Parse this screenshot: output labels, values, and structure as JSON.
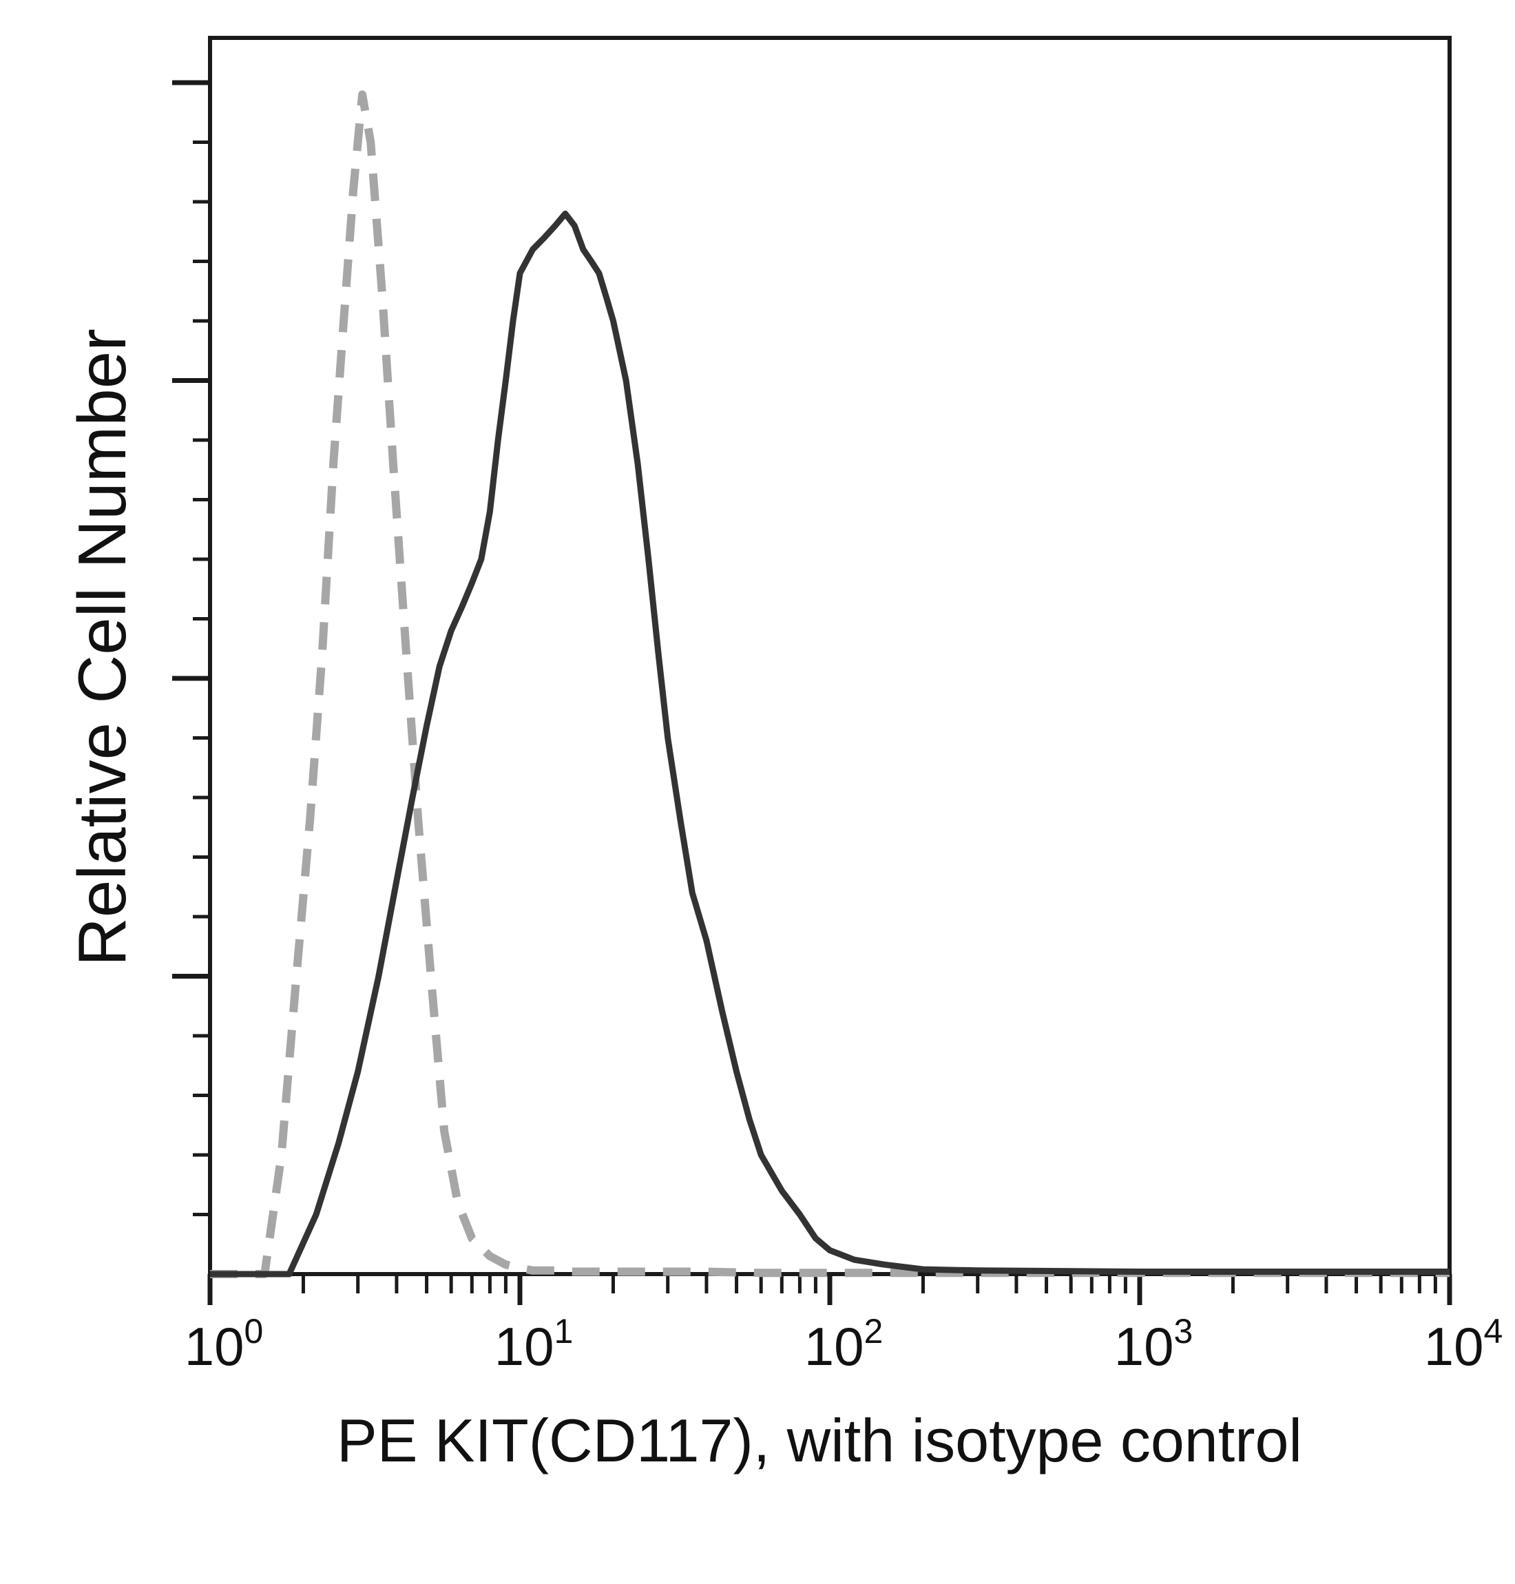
{
  "chart_data": {
    "type": "line",
    "title": "",
    "xlabel": "PE KIT(CD117), with isotype control",
    "ylabel": "Relative Cell Number",
    "x_scale": "log",
    "xlim": [
      1,
      10000
    ],
    "ylim": [
      0,
      100
    ],
    "x_ticks": [
      {
        "base": "10",
        "exp": "0"
      },
      {
        "base": "10",
        "exp": "1"
      },
      {
        "base": "10",
        "exp": "2"
      },
      {
        "base": "10",
        "exp": "3"
      },
      {
        "base": "10",
        "exp": "4"
      }
    ],
    "y_tick_labels": "none",
    "grid": false,
    "legend": "none",
    "series": [
      {
        "style": "dashed",
        "color": "#a6a6a6",
        "x": [
          1,
          1.5,
          1.7,
          1.9,
          2.1,
          2.3,
          2.5,
          2.7,
          2.9,
          3.1,
          3.3,
          3.6,
          3.9,
          4.3,
          4.7,
          5.2,
          5.7,
          6.3,
          7,
          8,
          9,
          10,
          11,
          13,
          15,
          17,
          20,
          25,
          30,
          40,
          60,
          100,
          1000,
          10000
        ],
        "y": [
          0,
          0,
          10,
          25,
          38,
          52,
          68,
          80,
          91,
          99,
          95,
          82,
          68,
          52,
          38,
          24,
          12,
          6,
          3,
          1.5,
          0.8,
          0.5,
          0.3,
          0.3,
          0.2,
          0.2,
          0.2,
          0.2,
          0.2,
          0.2,
          0.1,
          0.1,
          0.1,
          0.1
        ]
      },
      {
        "style": "solid",
        "color": "#333333",
        "x": [
          1,
          1.8,
          2.2,
          2.6,
          3,
          3.5,
          4,
          4.5,
          5,
          5.5,
          6,
          6.5,
          7,
          7.5,
          8,
          8.5,
          9,
          9.5,
          10,
          11,
          12,
          13,
          14,
          15,
          16,
          17,
          18,
          19,
          20,
          22,
          24,
          26,
          28,
          30,
          33,
          36,
          40,
          45,
          50,
          55,
          60,
          70,
          80,
          90,
          100,
          120,
          150,
          200,
          300,
          1000,
          10000
        ],
        "y": [
          0,
          0,
          5,
          11,
          17,
          25,
          33,
          40,
          46,
          51,
          54,
          56,
          58,
          60,
          64,
          70,
          75,
          80,
          84,
          86,
          87,
          88,
          89,
          88,
          86,
          85,
          84,
          82,
          80,
          75,
          68,
          60,
          52,
          45,
          38,
          32,
          28,
          22,
          17,
          13,
          10,
          7,
          5,
          3,
          2,
          1.2,
          0.8,
          0.4,
          0.3,
          0.2,
          0.2
        ]
      }
    ]
  }
}
